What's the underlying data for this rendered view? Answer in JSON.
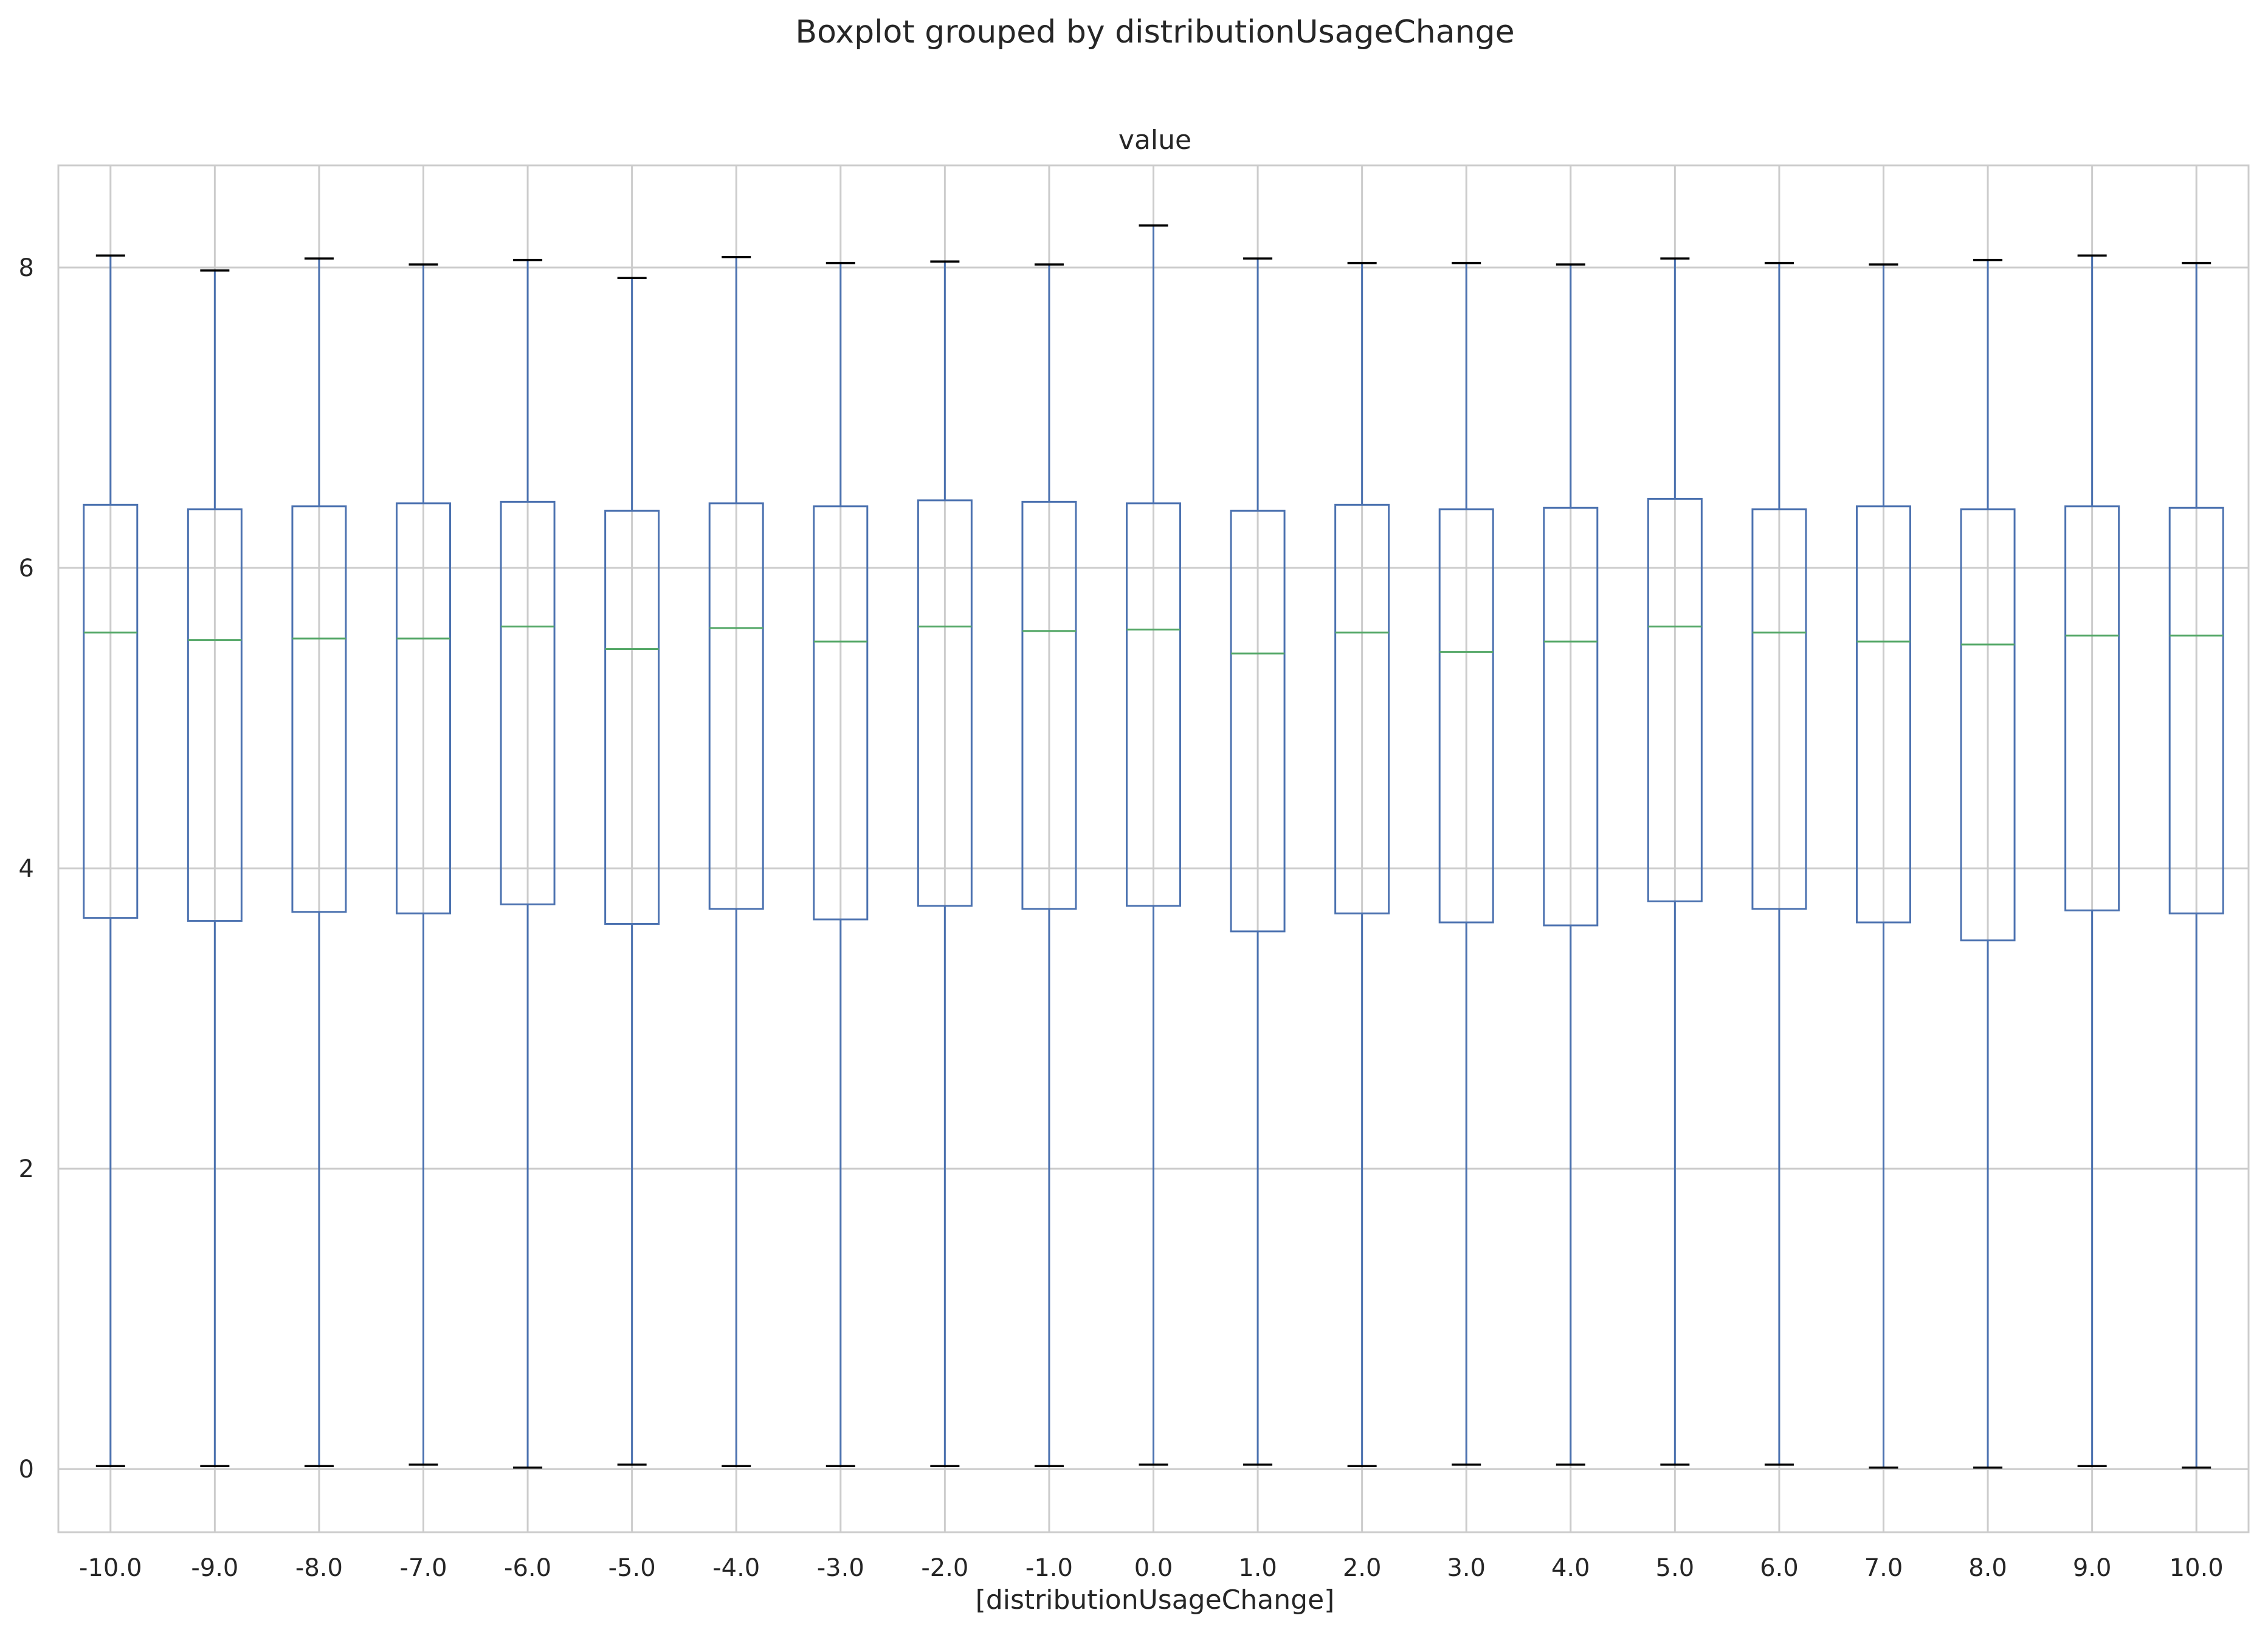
{
  "chart_data": {
    "type": "boxplot",
    "suptitle": "Boxplot grouped by distributionUsageChange",
    "title": "value",
    "xlabel": "[distributionUsageChange]",
    "ylabel": "",
    "ylim": [
      -0.42,
      8.68
    ],
    "yticks": [
      "0",
      "2",
      "4",
      "6",
      "8"
    ],
    "grid": true,
    "categories": [
      "-10.0",
      "-9.0",
      "-8.0",
      "-7.0",
      "-6.0",
      "-5.0",
      "-4.0",
      "-3.0",
      "-2.0",
      "-1.0",
      "0.0",
      "1.0",
      "2.0",
      "3.0",
      "4.0",
      "5.0",
      "6.0",
      "7.0",
      "8.0",
      "9.0",
      "10.0"
    ],
    "boxes": [
      {
        "min": 0.02,
        "q1": 3.67,
        "median": 5.57,
        "q3": 6.42,
        "max": 8.08
      },
      {
        "min": 0.02,
        "q1": 3.65,
        "median": 5.52,
        "q3": 6.39,
        "max": 7.98
      },
      {
        "min": 0.02,
        "q1": 3.71,
        "median": 5.53,
        "q3": 6.41,
        "max": 8.06
      },
      {
        "min": 0.03,
        "q1": 3.7,
        "median": 5.53,
        "q3": 6.43,
        "max": 8.02
      },
      {
        "min": 0.01,
        "q1": 3.76,
        "median": 5.61,
        "q3": 6.44,
        "max": 8.05
      },
      {
        "min": 0.03,
        "q1": 3.63,
        "median": 5.46,
        "q3": 6.38,
        "max": 7.93
      },
      {
        "min": 0.02,
        "q1": 3.73,
        "median": 5.6,
        "q3": 6.43,
        "max": 8.07
      },
      {
        "min": 0.02,
        "q1": 3.66,
        "median": 5.51,
        "q3": 6.41,
        "max": 8.03
      },
      {
        "min": 0.02,
        "q1": 3.75,
        "median": 5.61,
        "q3": 6.45,
        "max": 8.04
      },
      {
        "min": 0.02,
        "q1": 3.73,
        "median": 5.58,
        "q3": 6.44,
        "max": 8.02
      },
      {
        "min": 0.03,
        "q1": 3.75,
        "median": 5.59,
        "q3": 6.43,
        "max": 8.28
      },
      {
        "min": 0.03,
        "q1": 3.58,
        "median": 5.43,
        "q3": 6.38,
        "max": 8.06
      },
      {
        "min": 0.02,
        "q1": 3.7,
        "median": 5.57,
        "q3": 6.42,
        "max": 8.03
      },
      {
        "min": 0.03,
        "q1": 3.64,
        "median": 5.44,
        "q3": 6.39,
        "max": 8.03
      },
      {
        "min": 0.03,
        "q1": 3.62,
        "median": 5.51,
        "q3": 6.4,
        "max": 8.02
      },
      {
        "min": 0.03,
        "q1": 3.78,
        "median": 5.61,
        "q3": 6.46,
        "max": 8.06
      },
      {
        "min": 0.03,
        "q1": 3.73,
        "median": 5.57,
        "q3": 6.39,
        "max": 8.03
      },
      {
        "min": 0.01,
        "q1": 3.64,
        "median": 5.51,
        "q3": 6.41,
        "max": 8.02
      },
      {
        "min": 0.01,
        "q1": 3.52,
        "median": 5.49,
        "q3": 6.39,
        "max": 8.05
      },
      {
        "min": 0.02,
        "q1": 3.72,
        "median": 5.55,
        "q3": 6.41,
        "max": 8.08
      },
      {
        "min": 0.01,
        "q1": 3.7,
        "median": 5.55,
        "q3": 6.4,
        "max": 8.03
      }
    ],
    "colors": {
      "box": "#4c72b0",
      "median": "#55a868",
      "cap": "#000000",
      "grid": "#cccccc",
      "frame": "#cccccc"
    }
  }
}
